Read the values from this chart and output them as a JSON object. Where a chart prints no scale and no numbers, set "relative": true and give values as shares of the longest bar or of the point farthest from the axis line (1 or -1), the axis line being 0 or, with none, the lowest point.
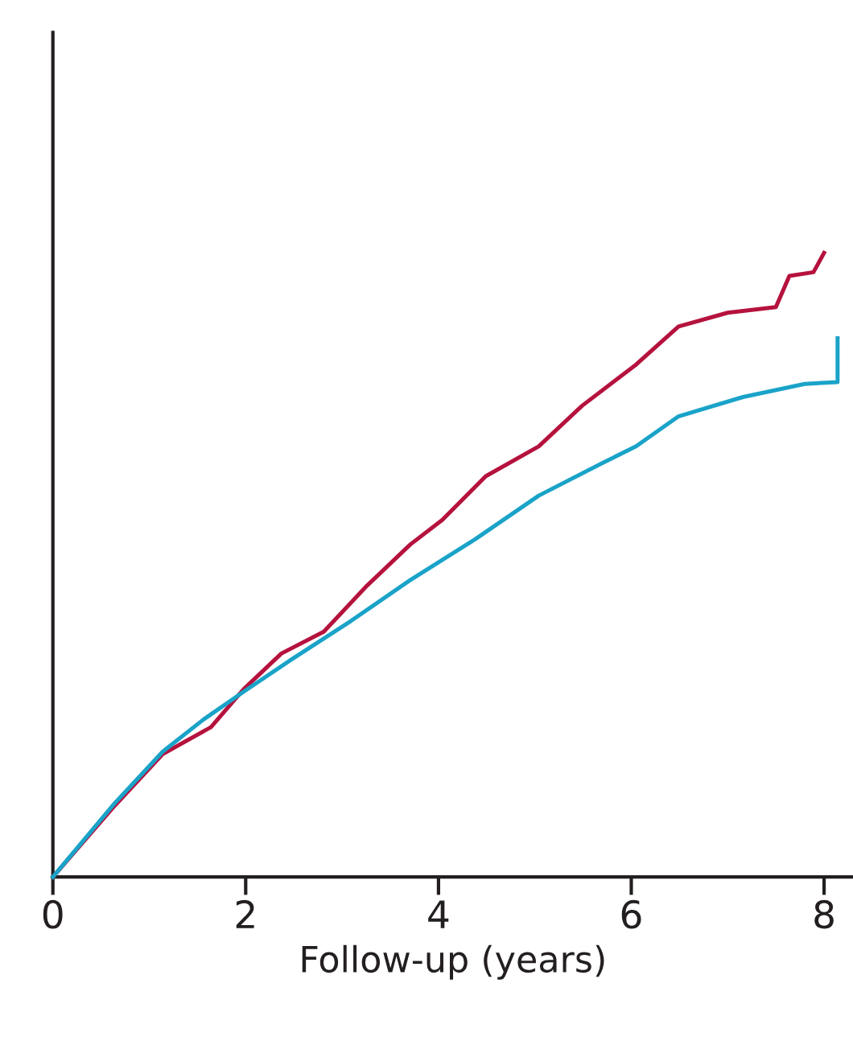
{
  "chart_data": {
    "type": "line",
    "relative": true,
    "xlabel": "Follow-up (years)",
    "xlim": [
      0,
      8.3
    ],
    "xticks": [
      0,
      2,
      4,
      6,
      8
    ],
    "grid": false,
    "legend": false,
    "series": [
      {
        "color": "#b5123e",
        "x": [
          0,
          0.64,
          1.14,
          1.64,
          1.98,
          2.37,
          2.81,
          3.26,
          3.71,
          4.04,
          4.49,
          5.04,
          5.49,
          6.05,
          6.49,
          7.0,
          7.5,
          7.64,
          7.89,
          8.0
        ],
        "values": [
          0,
          0.114,
          0.197,
          0.24,
          0.301,
          0.358,
          0.393,
          0.467,
          0.533,
          0.572,
          0.642,
          0.69,
          0.755,
          0.821,
          0.882,
          0.904,
          0.913,
          0.963,
          0.969,
          1.0
        ]
      },
      {
        "color": "#1aa3c8",
        "x": [
          0,
          0.64,
          1.14,
          1.56,
          1.98,
          2.48,
          3.09,
          3.71,
          4.38,
          5.04,
          5.71,
          6.05,
          6.49,
          7.16,
          7.8,
          8.14,
          8.14
        ],
        "values": [
          0,
          0.118,
          0.201,
          0.252,
          0.297,
          0.349,
          0.41,
          0.476,
          0.541,
          0.611,
          0.664,
          0.69,
          0.738,
          0.769,
          0.79,
          0.793,
          0.863
        ]
      }
    ]
  }
}
